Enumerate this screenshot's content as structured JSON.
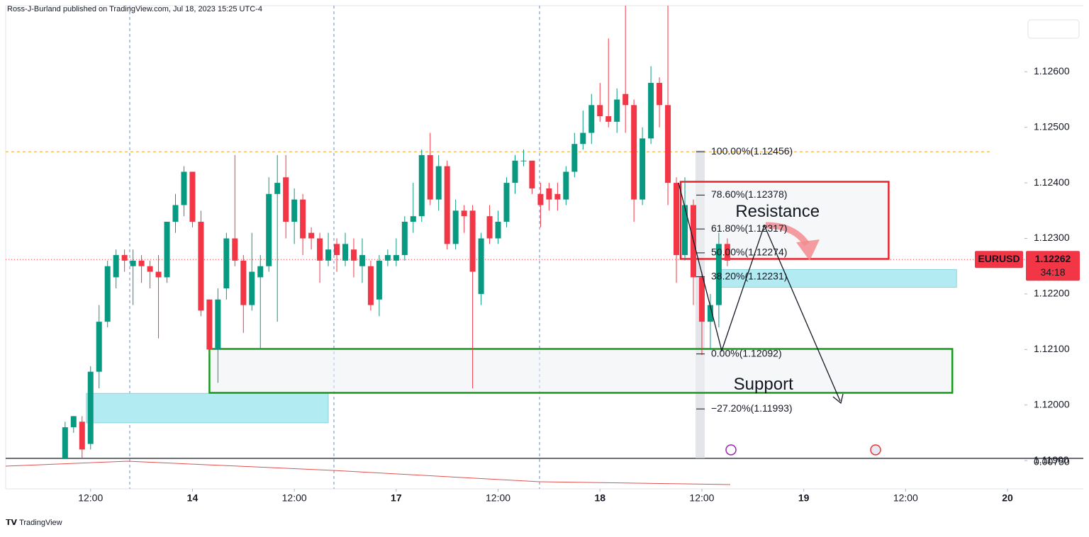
{
  "header": "Ross-J-Burland published on TradingView.com, Jul 18, 2023 15:25 UTC-4",
  "footer": "TradingView",
  "chart_data": {
    "type": "candlestick",
    "symbol": "EURUSD",
    "last_price": 1.12262,
    "last_price_label": "1.12262",
    "countdown": "34:18",
    "up_color": "#089981",
    "down_color": "#f23645",
    "xlim": [
      -22,
      98
    ],
    "ylim": [
      1.11904,
      1.12719
    ],
    "xticks": [
      {
        "value": -12,
        "label": "12:00"
      },
      {
        "value": 0,
        "label": "14"
      },
      {
        "value": 12,
        "label": "12:00"
      },
      {
        "value": 24,
        "label": "17"
      },
      {
        "value": 36,
        "label": "12:00"
      },
      {
        "value": 48,
        "label": "18"
      },
      {
        "value": 60,
        "label": "12:00"
      },
      {
        "value": 72,
        "label": "19"
      },
      {
        "value": 84,
        "label": "12:00"
      },
      {
        "value": 96,
        "label": "20"
      }
    ],
    "yticks": [
      {
        "value": 1.119,
        "label": "1.11900"
      },
      {
        "value": 1.12,
        "label": "1.12000"
      },
      {
        "value": 1.121,
        "label": "1.12100"
      },
      {
        "value": 1.122,
        "label": "1.12200"
      },
      {
        "value": 1.123,
        "label": "1.12300"
      },
      {
        "value": 1.124,
        "label": "1.12400"
      },
      {
        "value": 1.125,
        "label": "1.12500"
      },
      {
        "value": 1.126,
        "label": "1.12600"
      }
    ],
    "x": [
      -15,
      -14,
      -13,
      -12,
      -11,
      -10,
      -9,
      -8,
      -7,
      -6,
      -5,
      -4,
      -3,
      -2,
      -1,
      0,
      1,
      2,
      3,
      4,
      5,
      6,
      7,
      8,
      9,
      10,
      11,
      12,
      13,
      14,
      15,
      16,
      17,
      18,
      19,
      20,
      21,
      22,
      23,
      24,
      25,
      26,
      27,
      28,
      29,
      30,
      31,
      32,
      33,
      34,
      35,
      36,
      37,
      38,
      39,
      40,
      41,
      42,
      43,
      44,
      45,
      46,
      47,
      48,
      49,
      50,
      51,
      52,
      53,
      54,
      55,
      56,
      57,
      58,
      59,
      60,
      61,
      62,
      63
    ],
    "open": [
      1.119,
      1.1196,
      1.1197,
      1.1193,
      1.1206,
      1.1215,
      1.1223,
      1.1227,
      1.1225,
      1.1226,
      1.1225,
      1.1224,
      1.1223,
      1.1233,
      1.1236,
      1.1242,
      1.1233,
      1.1219,
      1.121,
      1.1221,
      1.123,
      1.1226,
      1.1218,
      1.1223,
      1.1225,
      1.1238,
      1.1241,
      1.1233,
      1.1237,
      1.1231,
      1.123,
      1.1226,
      1.1229,
      1.1226,
      1.1228,
      1.1225,
      1.1225,
      1.1219,
      1.1226,
      1.1226,
      1.1227,
      1.1233,
      1.1234,
      1.1245,
      1.1237,
      1.1243,
      1.1229,
      1.1235,
      1.1235,
      1.122,
      1.1234,
      1.123,
      1.1233,
      1.124,
      1.1244,
      1.1244,
      1.1238,
      1.1239,
      1.1238,
      1.1237,
      1.1242,
      1.1247,
      1.1249,
      1.1254,
      1.1252,
      1.1251,
      1.1256,
      1.1254,
      1.1237,
      1.1248,
      1.1258,
      1.1254,
      1.124,
      1.1227,
      1.1236,
      1.1223,
      1.1215,
      1.1218,
      1.1229
    ],
    "high": [
      1.1197,
      1.1198,
      1.1198,
      1.1207,
      1.1218,
      1.1226,
      1.1228,
      1.1228,
      1.1228,
      1.1227,
      1.1226,
      1.1227,
      1.1233,
      1.1238,
      1.1243,
      1.1242,
      1.1235,
      1.1219,
      1.1221,
      1.1231,
      1.1245,
      1.1227,
      1.1231,
      1.1227,
      1.1241,
      1.1245,
      1.1245,
      1.1239,
      1.1238,
      1.1232,
      1.1231,
      1.1231,
      1.123,
      1.1231,
      1.123,
      1.123,
      1.1226,
      1.1227,
      1.1228,
      1.123,
      1.1234,
      1.124,
      1.1246,
      1.1249,
      1.1245,
      1.1244,
      1.1237,
      1.1236,
      1.1236,
      1.1231,
      1.1236,
      1.1235,
      1.1241,
      1.1245,
      1.1246,
      1.1244,
      1.124,
      1.124,
      1.124,
      1.1243,
      1.1249,
      1.1253,
      1.1256,
      1.1258,
      1.1266,
      1.1257,
      1.128,
      1.1255,
      1.125,
      1.1261,
      1.1259,
      1.128,
      1.1241,
      1.1241,
      1.1237,
      1.1224,
      1.122,
      1.1231,
      1.123
    ],
    "low": [
      1.1189,
      1.1195,
      1.119,
      1.1192,
      1.1203,
      1.1214,
      1.1221,
      1.1224,
      1.1218,
      1.1222,
      1.1221,
      1.1212,
      1.1222,
      1.1231,
      1.1234,
      1.1232,
      1.1216,
      1.1209,
      1.1204,
      1.1219,
      1.1225,
      1.1213,
      1.1217,
      1.121,
      1.1224,
      1.1215,
      1.123,
      1.1229,
      1.1227,
      1.1228,
      1.1222,
      1.1225,
      1.1224,
      1.1225,
      1.1223,
      1.1222,
      1.1217,
      1.1216,
      1.1225,
      1.1225,
      1.1226,
      1.1231,
      1.1233,
      1.1236,
      1.1235,
      1.1228,
      1.1228,
      1.1231,
      1.1203,
      1.1218,
      1.1229,
      1.1229,
      1.1232,
      1.1238,
      1.1243,
      1.1238,
      1.1232,
      1.1235,
      1.1235,
      1.1236,
      1.1241,
      1.1246,
      1.1247,
      1.1251,
      1.125,
      1.1249,
      1.1249,
      1.1233,
      1.1236,
      1.1247,
      1.125,
      1.1236,
      1.1222,
      1.1226,
      1.1218,
      1.1209,
      1.121,
      1.1214,
      1.1225
    ],
    "close": [
      1.1196,
      1.1198,
      1.1192,
      1.1206,
      1.1215,
      1.1225,
      1.1227,
      1.1226,
      1.1226,
      1.1225,
      1.1224,
      1.1223,
      1.1233,
      1.1236,
      1.1242,
      1.1233,
      1.1217,
      1.121,
      1.1219,
      1.123,
      1.1226,
      1.1218,
      1.1224,
      1.1225,
      1.1238,
      1.124,
      1.1233,
      1.1237,
      1.123,
      1.123,
      1.1226,
      1.1228,
      1.1227,
      1.1229,
      1.1226,
      1.1227,
      1.1218,
      1.1226,
      1.1227,
      1.1227,
      1.1233,
      1.1234,
      1.1245,
      1.1237,
      1.1243,
      1.1229,
      1.1235,
      1.1234,
      1.1224,
      1.123,
      1.123,
      1.1233,
      1.124,
      1.1244,
      1.1244,
      1.1239,
      1.1236,
      1.1237,
      1.1237,
      1.1242,
      1.1247,
      1.1249,
      1.1254,
      1.1252,
      1.1251,
      1.1255,
      1.1254,
      1.1237,
      1.1248,
      1.1258,
      1.1254,
      1.124,
      1.1227,
      1.1236,
      1.1223,
      1.1215,
      1.1218,
      1.1229,
      1.1226
    ],
    "fib_levels": [
      {
        "label": "100.00%(1.12456)",
        "price": 1.12456
      },
      {
        "label": "78.60%(1.12378)",
        "price": 1.12378
      },
      {
        "label": "61.80%(1.12317)",
        "price": 1.12317
      },
      {
        "label": "50.00%(1.12274)",
        "price": 1.12274
      },
      {
        "label": "38.20%(1.12231)",
        "price": 1.12231
      },
      {
        "label": "0.00%(1.12092)",
        "price": 1.12092
      },
      {
        "label": "−27.20%(1.11993)",
        "price": 1.11993
      }
    ],
    "zones": [
      {
        "name": "Resistance",
        "x": [
          57.5,
          82
        ],
        "y": [
          1.12263,
          1.12402
        ],
        "color": "#e8232c"
      },
      {
        "name": "Support",
        "x": [
          2,
          89.5
        ],
        "y": [
          1.12022,
          1.12101
        ],
        "color": "#159a1a"
      }
    ],
    "boxes": [
      {
        "x": [
          62,
          90
        ],
        "y": [
          1.12212,
          1.12244
        ]
      },
      {
        "x": [
          -12.5,
          16
        ],
        "y": [
          1.11968,
          1.12021
        ]
      }
    ],
    "indicator_label": "0.00750"
  }
}
